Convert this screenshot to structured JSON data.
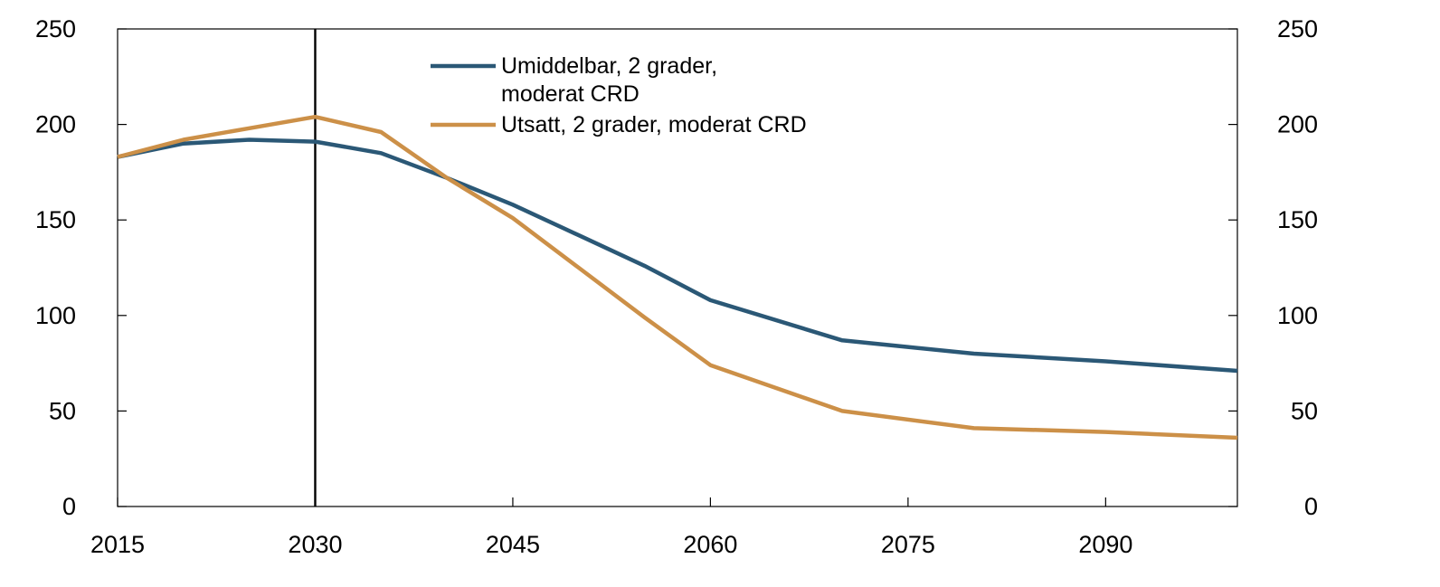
{
  "chart_data": {
    "type": "line",
    "title": "",
    "xlabel": "",
    "ylabel": "",
    "xlim": [
      2015,
      2100
    ],
    "ylim": [
      0,
      250
    ],
    "x_ticks": [
      2015,
      2030,
      2045,
      2060,
      2075,
      2090
    ],
    "y_ticks": [
      0,
      50,
      100,
      150,
      200,
      250
    ],
    "grid": false,
    "legend_position": "top-center",
    "reference_line_x": 2030,
    "series": [
      {
        "name": "Umiddelbar, 2 grader, moderat CRD",
        "name_lines": [
          "Umiddelbar, 2 grader,",
          "moderat CRD"
        ],
        "color": "#2b5876",
        "x": [
          2015,
          2020,
          2025,
          2030,
          2035,
          2040,
          2045,
          2050,
          2055,
          2060,
          2070,
          2080,
          2090,
          2100
        ],
        "values": [
          183,
          190,
          192,
          191,
          185,
          172,
          158,
          142,
          126,
          108,
          87,
          80,
          76,
          71
        ]
      },
      {
        "name": "Utsatt, 2 grader, moderat CRD",
        "name_lines": [
          "Utsatt, 2 grader, moderat CRD"
        ],
        "color": "#cc9048",
        "x": [
          2015,
          2020,
          2025,
          2030,
          2035,
          2040,
          2045,
          2050,
          2055,
          2060,
          2070,
          2080,
          2090,
          2100
        ],
        "values": [
          183,
          192,
          198,
          204,
          196,
          172,
          151,
          125,
          99,
          74,
          50,
          41,
          39,
          36
        ]
      }
    ]
  }
}
